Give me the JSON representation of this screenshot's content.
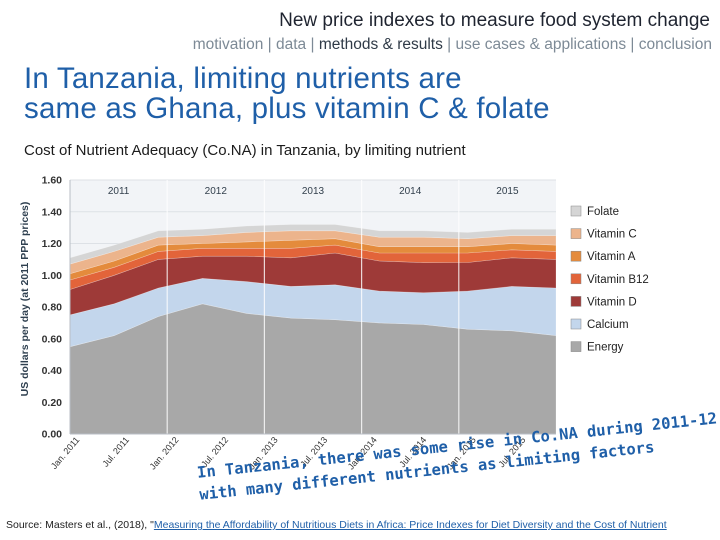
{
  "header": {
    "title": "New price indexes to measure food system change",
    "nav": {
      "before": "motivation | data | ",
      "active": "methods & results",
      "after": " | use cases & applications | conclusion"
    }
  },
  "slide": {
    "title_line1": "In Tanzania, limiting nutrients are",
    "title_line2": "same as Ghana, plus vitamin C & folate",
    "chart_subtitle": "Cost of Nutrient Adequacy (Co.NA) in Tanzania, by limiting nutrient"
  },
  "annotation": {
    "line1": "In Tanzania, there was some rise in Co.NA during 2011-12,",
    "line2": "with many different nutrients as limiting factors"
  },
  "source": {
    "prefix": "Source: Masters et al., (2018), \"",
    "link": "Measuring the Affordability of Nutritious Diets in Africa: Price Indexes for Diet Diversity and the Cost of Nutrient"
  },
  "colors": {
    "energy": "#a8a8a8",
    "calcium": "#c3d6ec",
    "vitamin_d": "#9e3a38",
    "vitamin_b12": "#e2643a",
    "vitamin_a": "#e48b3c",
    "vitamin_c": "#ecb48c",
    "folate": "#d5d5d5",
    "title": "#1f5fa8"
  },
  "chart_data": {
    "type": "area",
    "stacked": true,
    "title": "Cost of Nutrient Adequacy (Co.NA) in Tanzania, by limiting nutrient",
    "ylabel": "US dollars per day (at 2011 PPP prices)",
    "xlabel": "",
    "ylim": [
      0,
      1.6
    ],
    "yticks": [
      "0.00",
      "0.20",
      "0.40",
      "0.60",
      "0.80",
      "1.00",
      "1.20",
      "1.40",
      "1.60"
    ],
    "year_labels": [
      "2011",
      "2012",
      "2013",
      "2014",
      "2015"
    ],
    "x_tick_labels": [
      "Jan. 2011",
      "Jul. 2011",
      "Jan. 2012",
      "Jul. 2012",
      "Jan. 2013",
      "Jul. 2013",
      "Jan. 2014",
      "Jul. 2014",
      "Jan. 2015",
      "Jul. 2015"
    ],
    "legend_position": "right",
    "series": [
      {
        "name": "Energy",
        "key": "energy",
        "values": [
          0.55,
          0.62,
          0.74,
          0.82,
          0.76,
          0.73,
          0.72,
          0.7,
          0.69,
          0.66,
          0.65,
          0.62
        ]
      },
      {
        "name": "Calcium",
        "key": "calcium",
        "values": [
          0.2,
          0.2,
          0.18,
          0.16,
          0.2,
          0.2,
          0.22,
          0.2,
          0.2,
          0.24,
          0.28,
          0.3
        ]
      },
      {
        "name": "Vitamin D",
        "key": "vitamin_d",
        "values": [
          0.16,
          0.18,
          0.18,
          0.14,
          0.16,
          0.18,
          0.2,
          0.19,
          0.19,
          0.18,
          0.18,
          0.18
        ]
      },
      {
        "name": "Vitamin B12",
        "key": "vitamin_b12",
        "values": [
          0.06,
          0.05,
          0.05,
          0.05,
          0.05,
          0.06,
          0.05,
          0.05,
          0.06,
          0.06,
          0.05,
          0.05
        ]
      },
      {
        "name": "Vitamin A",
        "key": "vitamin_a",
        "values": [
          0.04,
          0.04,
          0.04,
          0.03,
          0.04,
          0.05,
          0.04,
          0.04,
          0.04,
          0.04,
          0.04,
          0.04
        ]
      },
      {
        "name": "Vitamin C",
        "key": "vitamin_c",
        "values": [
          0.06,
          0.06,
          0.05,
          0.05,
          0.06,
          0.06,
          0.05,
          0.06,
          0.06,
          0.05,
          0.05,
          0.06
        ]
      },
      {
        "name": "Folate",
        "key": "folate",
        "values": [
          0.04,
          0.04,
          0.04,
          0.04,
          0.04,
          0.04,
          0.04,
          0.04,
          0.04,
          0.04,
          0.04,
          0.04
        ]
      }
    ],
    "legend": [
      "Folate",
      "Vitamin C",
      "Vitamin A",
      "Vitamin B12",
      "Vitamin D",
      "Calcium",
      "Energy"
    ]
  }
}
